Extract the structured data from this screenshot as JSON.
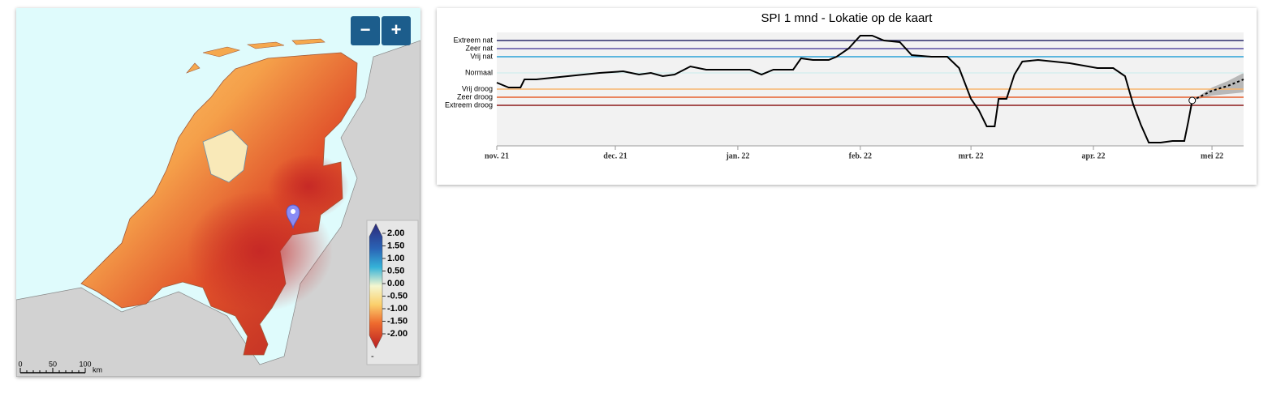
{
  "map": {
    "zoom_out": "−",
    "zoom_in": "+",
    "legend": {
      "ticks": [
        {
          "value": 2,
          "label": "2.00"
        },
        {
          "value": 1.5,
          "label": "1.50"
        },
        {
          "value": 1,
          "label": "1.00"
        },
        {
          "value": 0.5,
          "label": "0.50"
        },
        {
          "value": 0,
          "label": "0.00"
        },
        {
          "value": -0.5,
          "label": "-0.50"
        },
        {
          "value": -1,
          "label": "-1.00"
        },
        {
          "value": -1.5,
          "label": "-1.50"
        },
        {
          "value": -2,
          "label": "-2.00"
        }
      ],
      "unit": "-"
    },
    "scale_bar": {
      "ticks": [
        {
          "value": 0,
          "label": "0"
        },
        {
          "value": 50,
          "label": "50"
        },
        {
          "value": 100,
          "label": "100"
        }
      ],
      "unit": "km"
    }
  },
  "chart_data": {
    "type": "line",
    "title": "SPI 1 mnd - Lokatie op de kaart",
    "xlim": [
      0,
      189
    ],
    "xticks": [
      {
        "value": 0,
        "label": "nov. 21"
      },
      {
        "value": 30,
        "label": "dec. 21"
      },
      {
        "value": 61,
        "label": "jan. 22"
      },
      {
        "value": 92,
        "label": "feb. 22"
      },
      {
        "value": 120,
        "label": "mrt. 22"
      },
      {
        "value": 151,
        "label": "apr. 22"
      },
      {
        "value": 181,
        "label": "mei 22"
      }
    ],
    "ylim": [
      -4.5,
      2.5
    ],
    "yticks": [
      {
        "value": 2,
        "label": "Extreem nat"
      },
      {
        "value": 1.5,
        "label": "Zeer nat"
      },
      {
        "value": 1,
        "label": "Vrij nat"
      },
      {
        "value": 0,
        "label": "Normaal"
      },
      {
        "value": -1,
        "label": "Vrij droog"
      },
      {
        "value": -1.5,
        "label": "Zeer droog"
      },
      {
        "value": -2,
        "label": "Extreem droog"
      }
    ],
    "ytick_colors": [
      "#2a2a6a",
      "#5b4fa3",
      "#2aa2d8",
      "#d6eeee",
      "#f7b46c",
      "#e6602c",
      "#8c1b1b"
    ],
    "series": [
      {
        "color": "#000000",
        "x": [
          0,
          3,
          6,
          7,
          10,
          14,
          18,
          22,
          26,
          32,
          36,
          39,
          42,
          45,
          49,
          53,
          57,
          61,
          64,
          67,
          70,
          75,
          77,
          80,
          84,
          86,
          89,
          92,
          95,
          98,
          102,
          105,
          110,
          114,
          117,
          120,
          122,
          124,
          126,
          127,
          129,
          131,
          133,
          137,
          141,
          145,
          152,
          156,
          159,
          161,
          163,
          165,
          168,
          171,
          174,
          175,
          176
        ],
        "values": [
          -0.6,
          -0.9,
          -0.9,
          -0.4,
          -0.4,
          -0.3,
          -0.2,
          -0.1,
          0,
          0.1,
          -0.1,
          0,
          -0.2,
          -0.1,
          0.4,
          0.2,
          0.2,
          0.2,
          0.2,
          -0.1,
          0.2,
          0.2,
          0.9,
          0.8,
          0.8,
          1,
          1.5,
          2.3,
          2.3,
          2,
          1.9,
          1.1,
          1,
          1,
          0.3,
          -1.6,
          -2.3,
          -3.3,
          -3.3,
          -1.6,
          -1.6,
          -0.1,
          0.7,
          0.8,
          0.7,
          0.6,
          0.3,
          0.3,
          -0.2,
          -1.9,
          -3.2,
          -4.3,
          -4.3,
          -4.2,
          -4.2,
          -3,
          -1.7
        ]
      },
      {
        "color": "#000000",
        "dashed": true,
        "x": [
          176,
          181,
          185,
          189
        ],
        "values": [
          -1.7,
          -1.1,
          -0.8,
          -0.4
        ]
      }
    ],
    "band": {
      "color": "#a9a9a9",
      "x": [
        176,
        181,
        185,
        189
      ],
      "lower": [
        -1.7,
        -1.4,
        -1.3,
        -1.2
      ],
      "upper": [
        -1.7,
        -0.9,
        -0.5,
        0
      ]
    }
  }
}
